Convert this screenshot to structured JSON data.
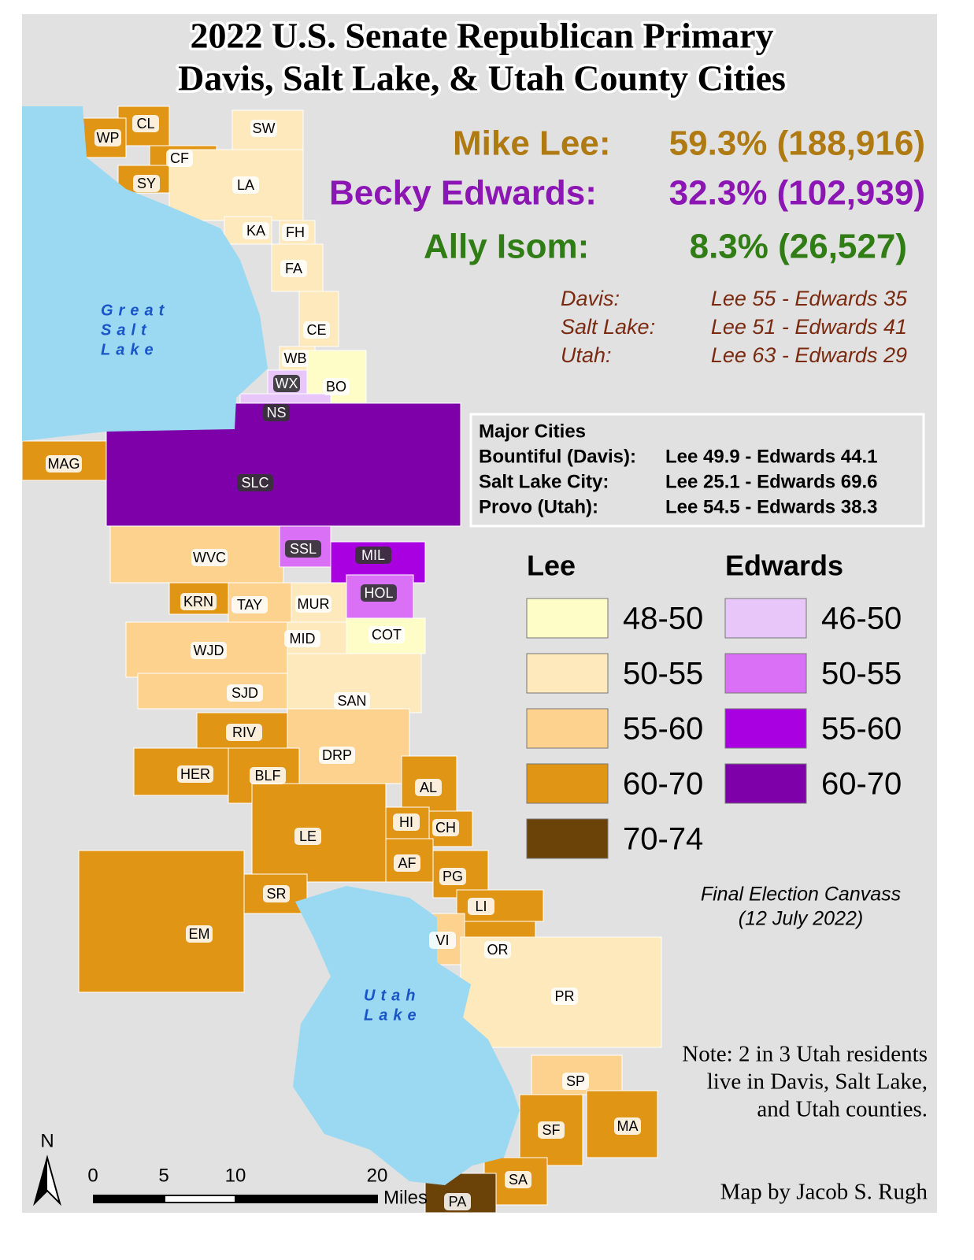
{
  "title": [
    "2022 U.S. Senate Republican Primary",
    "Davis, Salt Lake, & Utah County Cities"
  ],
  "results": [
    {
      "name": "Mike Lee:",
      "result": "59.3% (188,916)",
      "color": "#b07a12"
    },
    {
      "name": "Becky Edwards:",
      "result": "32.3% (102,939)",
      "color": "#8c16b4"
    },
    {
      "name": "Ally Isom:",
      "result": "8.3% (26,527)",
      "color": "#2f7d14"
    }
  ],
  "counties": [
    [
      "Davis:",
      "Lee 55 - Edwards 35"
    ],
    [
      "Salt Lake:",
      "Lee 51 - Edwards 41"
    ],
    [
      "Utah:",
      "Lee 63 - Edwards 29"
    ]
  ],
  "major_cities": {
    "title": "Major Cities",
    "rows": [
      [
        "Bountiful (Davis):",
        "Lee 49.9 - Edwards 44.1"
      ],
      [
        "Salt Lake City:",
        "Lee 25.1 - Edwards 69.6"
      ],
      [
        "Provo (Utah):",
        "Lee 54.5 - Edwards 38.3"
      ]
    ]
  },
  "legend": {
    "lee": {
      "title": "Lee",
      "entries": [
        {
          "label": "48-50",
          "color": "#fefdc8"
        },
        {
          "label": "50-55",
          "color": "#fde9bb"
        },
        {
          "label": "55-60",
          "color": "#fcd28e"
        },
        {
          "label": "60-70",
          "color": "#e09614"
        },
        {
          "label": "70-74",
          "color": "#6b4208"
        }
      ]
    },
    "edwards": {
      "title": "Edwards",
      "entries": [
        {
          "label": "46-50",
          "color": "#e9c6fa"
        },
        {
          "label": "50-55",
          "color": "#d970f5"
        },
        {
          "label": "55-60",
          "color": "#a800e0"
        },
        {
          "label": "60-70",
          "color": "#7d00a8"
        }
      ]
    }
  },
  "canvass": [
    "Final Election Canvass",
    "(12 July 2022)"
  ],
  "note": [
    "Note: 2 in 3 Utah residents",
    "live in Davis, Salt Lake,",
    "and Utah counties."
  ],
  "credit": "Map by Jacob S. Rugh",
  "water": {
    "great_salt_lake": [
      "Great",
      "Salt",
      "Lake"
    ],
    "utah_lake": [
      "Utah",
      "Lake"
    ]
  },
  "scale": {
    "ticks": [
      "0",
      "5",
      "10",
      "20"
    ],
    "unit": "Miles",
    "north": "N"
  },
  "cities": [
    {
      "label": "CL",
      "color": "#e09614"
    },
    {
      "label": "WP",
      "color": "#e09614"
    },
    {
      "label": "CF",
      "color": "#e09614"
    },
    {
      "label": "SY",
      "color": "#e09614"
    },
    {
      "label": "SW",
      "color": "#fde9bb"
    },
    {
      "label": "LA",
      "color": "#fde9bb"
    },
    {
      "label": "KA",
      "color": "#fde9bb"
    },
    {
      "label": "FH",
      "color": "#fde9bb"
    },
    {
      "label": "FA",
      "color": "#fde9bb"
    },
    {
      "label": "CE",
      "color": "#fde9bb"
    },
    {
      "label": "WB",
      "color": "#fde9bb"
    },
    {
      "label": "BO",
      "color": "#fefdc8"
    },
    {
      "label": "WX",
      "color": "#e9c6fa"
    },
    {
      "label": "NS",
      "color": "#e9c6fa"
    },
    {
      "label": "SLC",
      "color": "#7d00a8"
    },
    {
      "label": "MAG",
      "color": "#e09614"
    },
    {
      "label": "WVC",
      "color": "#fcd28e"
    },
    {
      "label": "SSL",
      "color": "#d970f5"
    },
    {
      "label": "MIL",
      "color": "#a800e0"
    },
    {
      "label": "HOL",
      "color": "#d970f5"
    },
    {
      "label": "KRN",
      "color": "#e09614"
    },
    {
      "label": "TAY",
      "color": "#fcd28e"
    },
    {
      "label": "MUR",
      "color": "#fde9bb"
    },
    {
      "label": "MID",
      "color": "#fde9bb"
    },
    {
      "label": "COT",
      "color": "#fefdc8"
    },
    {
      "label": "WJD",
      "color": "#fcd28e"
    },
    {
      "label": "SJD",
      "color": "#fcd28e"
    },
    {
      "label": "SAN",
      "color": "#fde9bb"
    },
    {
      "label": "RIV",
      "color": "#e09614"
    },
    {
      "label": "DRP",
      "color": "#fcd28e"
    },
    {
      "label": "HER",
      "color": "#e09614"
    },
    {
      "label": "BLF",
      "color": "#e09614"
    },
    {
      "label": "AL",
      "color": "#e09614"
    },
    {
      "label": "HI",
      "color": "#e09614"
    },
    {
      "label": "CH",
      "color": "#e09614"
    },
    {
      "label": "LE",
      "color": "#e09614"
    },
    {
      "label": "AF",
      "color": "#e09614"
    },
    {
      "label": "PG",
      "color": "#e09614"
    },
    {
      "label": "SR",
      "color": "#e09614"
    },
    {
      "label": "LI",
      "color": "#e09614"
    },
    {
      "label": "EM",
      "color": "#e09614"
    },
    {
      "label": "VI",
      "color": "#fcd28e"
    },
    {
      "label": "OR",
      "color": "#e09614"
    },
    {
      "label": "PR",
      "color": "#fde9bb"
    },
    {
      "label": "SP",
      "color": "#fcd28e"
    },
    {
      "label": "SF",
      "color": "#e09614"
    },
    {
      "label": "MA",
      "color": "#e09614"
    },
    {
      "label": "SA",
      "color": "#e09614"
    },
    {
      "label": "PA",
      "color": "#6b4208"
    }
  ]
}
